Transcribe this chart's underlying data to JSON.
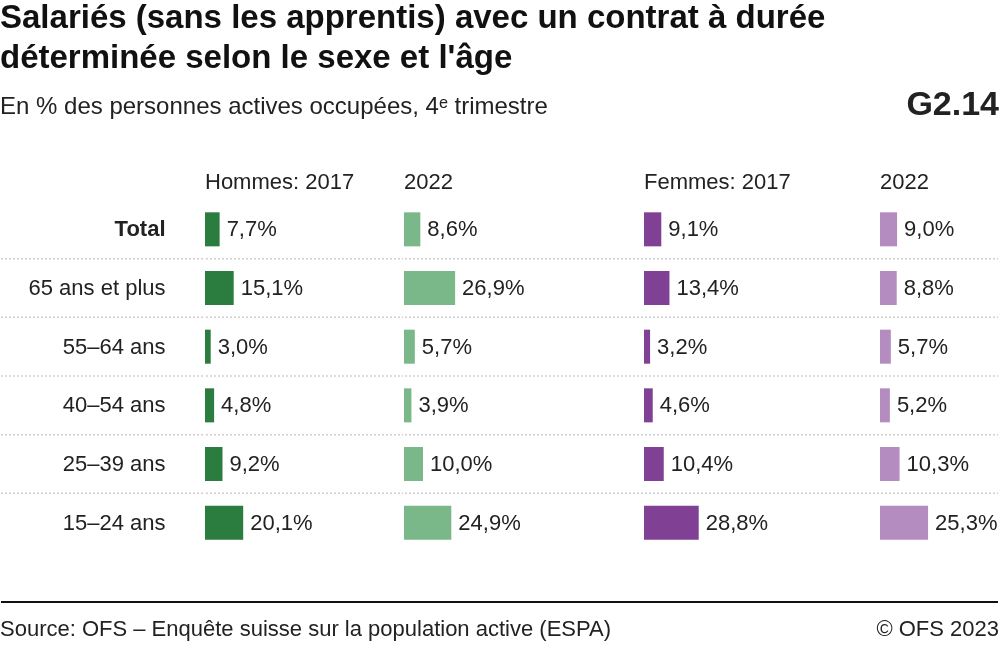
{
  "chart_data": [
    {
      "type": "bar",
      "orientation": "horizontal",
      "title": "Salariés (sans les apprentis) avec un contrat à durée déterminée selon le sexe et l'âge",
      "subtitle": "En % des personnes actives occupées, 4ᵉ trimestre",
      "categories": [
        "Total",
        "65 ans et plus",
        "55–64 ans",
        "40–54 ans",
        "25–39 ans",
        "15–24 ans"
      ],
      "series": [
        {
          "name": "Hommes: 2017",
          "color": "#2a7d3e",
          "values": [
            7.7,
            15.1,
            3.0,
            4.8,
            9.2,
            20.1
          ],
          "value_labels": [
            "7,7%",
            "15,1%",
            "3,0%",
            "4,8%",
            "9,2%",
            "20,1%"
          ]
        }
      ],
      "grid": "y",
      "tick_labels": "y",
      "annotations": [
        "G2.14",
        "Source: OFS – Enquête suisse sur la population active (ESPA)",
        "© OFS 2023"
      ]
    },
    {
      "type": "bar",
      "orientation": "horizontal",
      "categories": [
        null,
        null,
        null,
        null,
        null,
        null
      ],
      "series": [
        {
          "name": "2022",
          "color": "#7ab889",
          "values": [
            8.6,
            26.9,
            5.7,
            3.9,
            10.0,
            24.9
          ],
          "value_labels": [
            "8,6%",
            "26,9%",
            "5,7%",
            "3,9%",
            "10,0%",
            "24,9%"
          ]
        }
      ],
      "grid": "y"
    },
    {
      "type": "bar",
      "orientation": "horizontal",
      "categories": [
        null,
        null,
        null,
        null,
        null,
        null
      ],
      "series": [
        {
          "name": "Femmes: 2017",
          "color": "#804195",
          "values": [
            9.1,
            13.4,
            3.2,
            4.6,
            10.4,
            28.8
          ],
          "value_labels": [
            "9,1%",
            "13,4%",
            "3,2%",
            "4,6%",
            "10,4%",
            "28,8%"
          ]
        }
      ],
      "grid": "y"
    },
    {
      "type": "bar",
      "orientation": "horizontal",
      "categories": [
        null,
        null,
        null,
        null,
        null,
        null
      ],
      "series": [
        {
          "name": "2022",
          "color": "#b48cc0",
          "values": [
            9.0,
            8.8,
            5.7,
            5.2,
            10.3,
            25.3
          ],
          "value_labels": [
            "9,0%",
            "8,8%",
            "5,7%",
            "5,2%",
            "10,3%",
            "25,3%"
          ]
        }
      ],
      "grid": "y"
    }
  ]
}
